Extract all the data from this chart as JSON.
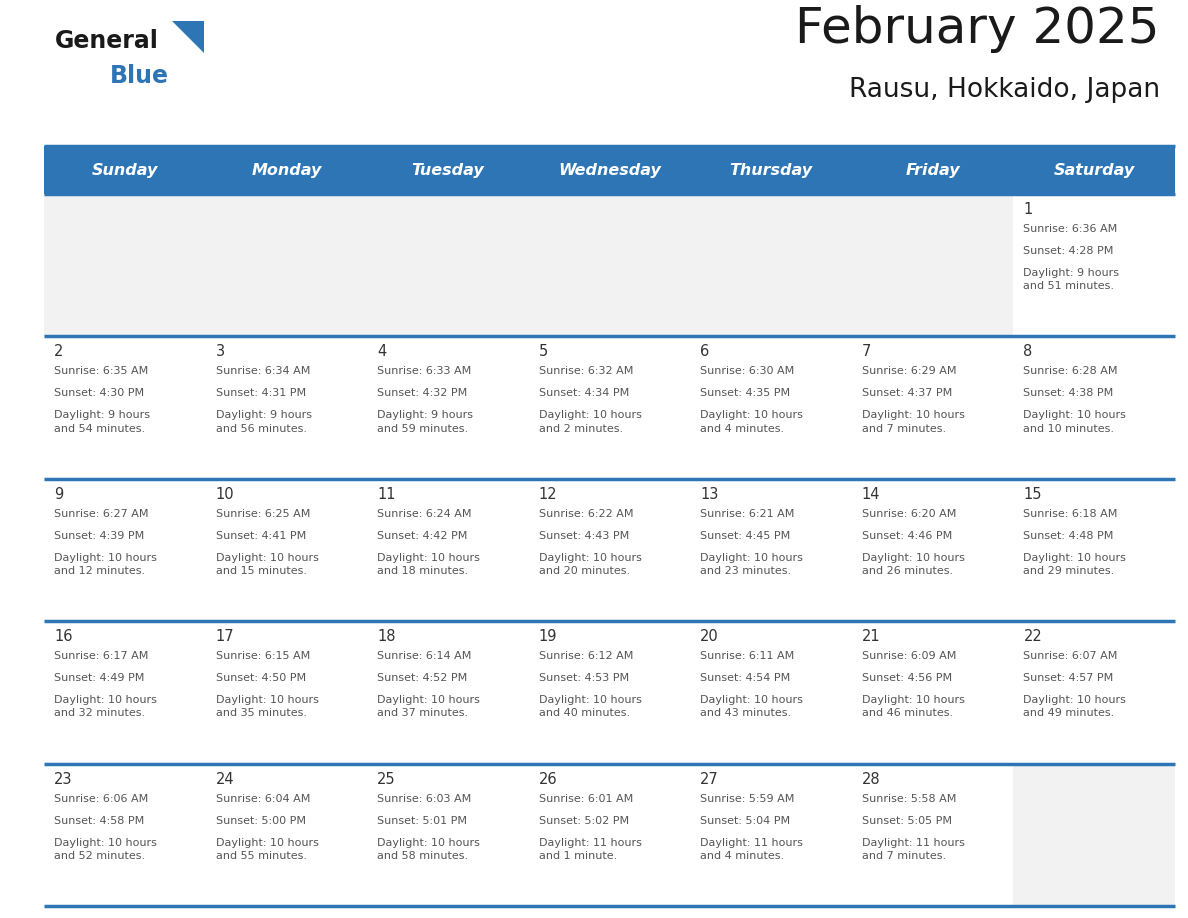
{
  "title": "February 2025",
  "subtitle": "Rausu, Hokkaido, Japan",
  "days_of_week": [
    "Sunday",
    "Monday",
    "Tuesday",
    "Wednesday",
    "Thursday",
    "Friday",
    "Saturday"
  ],
  "header_bg": "#2E75B6",
  "header_text": "#FFFFFF",
  "cell_bg_white": "#FFFFFF",
  "cell_bg_gray": "#F2F2F2",
  "border_color": "#2E75B6",
  "text_color": "#555555",
  "day_num_color": "#333333",
  "logo_general_color": "#1A1A1A",
  "logo_blue_color": "#2E75B6",
  "logo_triangle_color": "#2E75B6",
  "calendar_data": [
    [
      null,
      null,
      null,
      null,
      null,
      null,
      {
        "day": 1,
        "sunrise": "6:36 AM",
        "sunset": "4:28 PM",
        "daylight": "9 hours\nand 51 minutes."
      }
    ],
    [
      {
        "day": 2,
        "sunrise": "6:35 AM",
        "sunset": "4:30 PM",
        "daylight": "9 hours\nand 54 minutes."
      },
      {
        "day": 3,
        "sunrise": "6:34 AM",
        "sunset": "4:31 PM",
        "daylight": "9 hours\nand 56 minutes."
      },
      {
        "day": 4,
        "sunrise": "6:33 AM",
        "sunset": "4:32 PM",
        "daylight": "9 hours\nand 59 minutes."
      },
      {
        "day": 5,
        "sunrise": "6:32 AM",
        "sunset": "4:34 PM",
        "daylight": "10 hours\nand 2 minutes."
      },
      {
        "day": 6,
        "sunrise": "6:30 AM",
        "sunset": "4:35 PM",
        "daylight": "10 hours\nand 4 minutes."
      },
      {
        "day": 7,
        "sunrise": "6:29 AM",
        "sunset": "4:37 PM",
        "daylight": "10 hours\nand 7 minutes."
      },
      {
        "day": 8,
        "sunrise": "6:28 AM",
        "sunset": "4:38 PM",
        "daylight": "10 hours\nand 10 minutes."
      }
    ],
    [
      {
        "day": 9,
        "sunrise": "6:27 AM",
        "sunset": "4:39 PM",
        "daylight": "10 hours\nand 12 minutes."
      },
      {
        "day": 10,
        "sunrise": "6:25 AM",
        "sunset": "4:41 PM",
        "daylight": "10 hours\nand 15 minutes."
      },
      {
        "day": 11,
        "sunrise": "6:24 AM",
        "sunset": "4:42 PM",
        "daylight": "10 hours\nand 18 minutes."
      },
      {
        "day": 12,
        "sunrise": "6:22 AM",
        "sunset": "4:43 PM",
        "daylight": "10 hours\nand 20 minutes."
      },
      {
        "day": 13,
        "sunrise": "6:21 AM",
        "sunset": "4:45 PM",
        "daylight": "10 hours\nand 23 minutes."
      },
      {
        "day": 14,
        "sunrise": "6:20 AM",
        "sunset": "4:46 PM",
        "daylight": "10 hours\nand 26 minutes."
      },
      {
        "day": 15,
        "sunrise": "6:18 AM",
        "sunset": "4:48 PM",
        "daylight": "10 hours\nand 29 minutes."
      }
    ],
    [
      {
        "day": 16,
        "sunrise": "6:17 AM",
        "sunset": "4:49 PM",
        "daylight": "10 hours\nand 32 minutes."
      },
      {
        "day": 17,
        "sunrise": "6:15 AM",
        "sunset": "4:50 PM",
        "daylight": "10 hours\nand 35 minutes."
      },
      {
        "day": 18,
        "sunrise": "6:14 AM",
        "sunset": "4:52 PM",
        "daylight": "10 hours\nand 37 minutes."
      },
      {
        "day": 19,
        "sunrise": "6:12 AM",
        "sunset": "4:53 PM",
        "daylight": "10 hours\nand 40 minutes."
      },
      {
        "day": 20,
        "sunrise": "6:11 AM",
        "sunset": "4:54 PM",
        "daylight": "10 hours\nand 43 minutes."
      },
      {
        "day": 21,
        "sunrise": "6:09 AM",
        "sunset": "4:56 PM",
        "daylight": "10 hours\nand 46 minutes."
      },
      {
        "day": 22,
        "sunrise": "6:07 AM",
        "sunset": "4:57 PM",
        "daylight": "10 hours\nand 49 minutes."
      }
    ],
    [
      {
        "day": 23,
        "sunrise": "6:06 AM",
        "sunset": "4:58 PM",
        "daylight": "10 hours\nand 52 minutes."
      },
      {
        "day": 24,
        "sunrise": "6:04 AM",
        "sunset": "5:00 PM",
        "daylight": "10 hours\nand 55 minutes."
      },
      {
        "day": 25,
        "sunrise": "6:03 AM",
        "sunset": "5:01 PM",
        "daylight": "10 hours\nand 58 minutes."
      },
      {
        "day": 26,
        "sunrise": "6:01 AM",
        "sunset": "5:02 PM",
        "daylight": "11 hours\nand 1 minute."
      },
      {
        "day": 27,
        "sunrise": "5:59 AM",
        "sunset": "5:04 PM",
        "daylight": "11 hours\nand 4 minutes."
      },
      {
        "day": 28,
        "sunrise": "5:58 AM",
        "sunset": "5:05 PM",
        "daylight": "11 hours\nand 7 minutes."
      },
      null
    ]
  ]
}
